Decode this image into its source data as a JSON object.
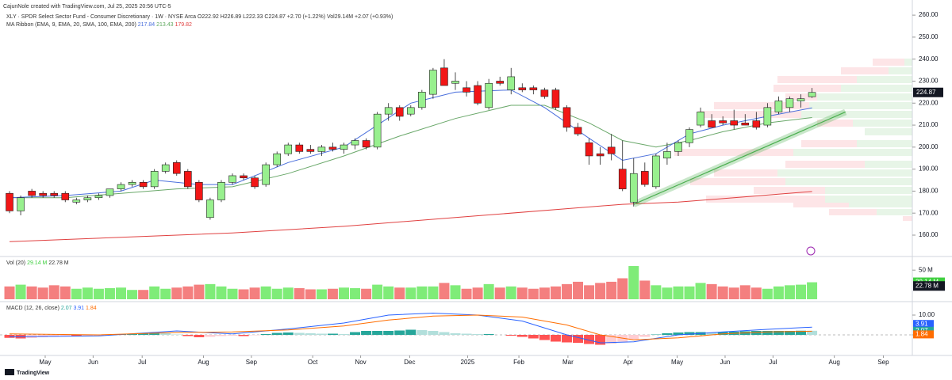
{
  "header": {
    "credit": "CajunNole created with TradingView.com, Jul 25, 2025 20:56 UTC-5",
    "footer": "TradingView"
  },
  "chart_data": [
    {
      "type": "candlestick",
      "legend": [
        "XLY · SPDR Select Sector Fund - Consumer Discretionary · 1W · NYSE Arca  O222.92 H226.89 L222.33 C224.87 +2.70 (+1.22%) Vol29.14M +2.07 (+0.93%)",
        "MA Ribbon (EMA, 9, EMA, 20, SMA, 100, EMA, 200)"
      ],
      "legend_values": [
        217.84,
        213.43,
        179.82
      ],
      "legend_colors": [
        "#4a6fdc",
        "#5fa85f",
        "#e04040"
      ],
      "up_color": "#98f08e",
      "down_color": "#f21616",
      "ohlc": [
        [
          179,
          180,
          170,
          171
        ],
        [
          171,
          178,
          169,
          177
        ],
        [
          180,
          181,
          177,
          178
        ],
        [
          179,
          180,
          177,
          178
        ],
        [
          179,
          180,
          177,
          178
        ],
        [
          179,
          180,
          175,
          176
        ],
        [
          175,
          177,
          174,
          176
        ],
        [
          176,
          178,
          175,
          177
        ],
        [
          177,
          179,
          176,
          178
        ],
        [
          178,
          181,
          177,
          181
        ],
        [
          181,
          184,
          180,
          183
        ],
        [
          183,
          185,
          182,
          184
        ],
        [
          184,
          185,
          181,
          182
        ],
        [
          182,
          190,
          181,
          189
        ],
        [
          189,
          193,
          188,
          192
        ],
        [
          193,
          194,
          187,
          188
        ],
        [
          189,
          190,
          181,
          182
        ],
        [
          184,
          185,
          175,
          176
        ],
        [
          168,
          177,
          167,
          176
        ],
        [
          176,
          185,
          175,
          184
        ],
        [
          184,
          188,
          183,
          187
        ],
        [
          187,
          188,
          185,
          186
        ],
        [
          186,
          187,
          181,
          182
        ],
        [
          183,
          193,
          182,
          192
        ],
        [
          192,
          198,
          191,
          197
        ],
        [
          197,
          202,
          196,
          201
        ],
        [
          201,
          202,
          197,
          198
        ],
        [
          199,
          201,
          197,
          198
        ],
        [
          198,
          201,
          196,
          200
        ],
        [
          200,
          202,
          198,
          199
        ],
        [
          199,
          202,
          197,
          201
        ],
        [
          201,
          204,
          199,
          203
        ],
        [
          203,
          204,
          199,
          200
        ],
        [
          200,
          216,
          199,
          215
        ],
        [
          215,
          220,
          212,
          218
        ],
        [
          218,
          219,
          212,
          214
        ],
        [
          215,
          219,
          214,
          218
        ],
        [
          218,
          226,
          217,
          225
        ],
        [
          224,
          236,
          222,
          235
        ],
        [
          236,
          240,
          228,
          228
        ],
        [
          229,
          234,
          226,
          230
        ],
        [
          227,
          230,
          223,
          225
        ],
        [
          228,
          230,
          219,
          220
        ],
        [
          218,
          231,
          217,
          229
        ],
        [
          230,
          232,
          228,
          229
        ],
        [
          226,
          236,
          224,
          232
        ],
        [
          227,
          229,
          225,
          226
        ],
        [
          227,
          228,
          224,
          226
        ],
        [
          226,
          227,
          222,
          223
        ],
        [
          226,
          227,
          217,
          218
        ],
        [
          218,
          219,
          207,
          209
        ],
        [
          209,
          211,
          205,
          206
        ],
        [
          202,
          204,
          192,
          196
        ],
        [
          197,
          200,
          192,
          196
        ],
        [
          200,
          206,
          194,
          197
        ],
        [
          190,
          203,
          180,
          181
        ],
        [
          175,
          195,
          173,
          188
        ],
        [
          189,
          193,
          182,
          183
        ],
        [
          182,
          197,
          181,
          196
        ],
        [
          195,
          202,
          192,
          198
        ],
        [
          198,
          203,
          196,
          202
        ],
        [
          202,
          209,
          200,
          208
        ],
        [
          210,
          218,
          209,
          216
        ],
        [
          212,
          215,
          209,
          209
        ],
        [
          212,
          214,
          210,
          211
        ],
        [
          212,
          217,
          208,
          210
        ],
        [
          211,
          215,
          210,
          210
        ],
        [
          212,
          216,
          208,
          209
        ],
        [
          210,
          220,
          209,
          218
        ],
        [
          216,
          223,
          215,
          221
        ],
        [
          218,
          223,
          216,
          222
        ],
        [
          221,
          224,
          218,
          222
        ],
        [
          222.92,
          226.89,
          222.33,
          224.87
        ]
      ],
      "lines": [
        {
          "color": "#e04040",
          "x": [
            0,
            10,
            20,
            30,
            40,
            50,
            55,
            60,
            65,
            72
          ],
          "values": [
            157,
            159,
            161,
            164,
            168,
            172,
            174,
            175,
            177,
            179.82
          ]
        },
        {
          "color": "#6aa86a",
          "x": [
            0,
            5,
            10,
            15,
            20,
            25,
            30,
            35,
            40,
            45,
            48,
            52,
            55,
            58,
            61,
            64,
            68,
            72
          ],
          "values": [
            177,
            177,
            179,
            181,
            182,
            188,
            196,
            205,
            213,
            219,
            219,
            211,
            203,
            200,
            203,
            207,
            211,
            213.43
          ]
        },
        {
          "color": "#4a6fdc",
          "x": [
            0,
            5,
            10,
            13,
            17,
            20,
            25,
            30,
            33,
            36,
            40,
            45,
            48,
            52,
            55,
            58,
            61,
            64,
            68,
            72
          ],
          "values": [
            177,
            178,
            180,
            185,
            183,
            183,
            193,
            200,
            210,
            220,
            225,
            226,
            218,
            204,
            194,
            197,
            206,
            210,
            214,
            217.84
          ]
        }
      ],
      "trendline": {
        "color": "#4caf50",
        "x": [
          56,
          75
        ],
        "values": [
          174,
          216
        ]
      },
      "xlim": [
        -0.5,
        81
      ],
      "xticks": [
        {
          "value": 3.2,
          "label": "May"
        },
        {
          "value": 7.5,
          "label": "Jun"
        },
        {
          "value": 11.9,
          "label": "Jul"
        },
        {
          "value": 17.4,
          "label": "Aug"
        },
        {
          "value": 21.7,
          "label": "Sep"
        },
        {
          "value": 27.2,
          "label": "Oct"
        },
        {
          "value": 31.5,
          "label": "Nov"
        },
        {
          "value": 35.9,
          "label": "Dec"
        },
        {
          "value": 41.1,
          "label": "2025"
        },
        {
          "value": 45.7,
          "label": "Feb"
        },
        {
          "value": 50.1,
          "label": "Mar"
        },
        {
          "value": 55.5,
          "label": "Apr"
        },
        {
          "value": 59.9,
          "label": "May"
        },
        {
          "value": 64.2,
          "label": "Jun"
        },
        {
          "value": 68.5,
          "label": "Jul"
        },
        {
          "value": 74,
          "label": "Aug"
        },
        {
          "value": 78.4,
          "label": "Sep"
        }
      ],
      "ylim": [
        151,
        264
      ],
      "yticks": [
        {
          "value": 160,
          "label": "160.00"
        },
        {
          "value": 170,
          "label": "170.00"
        },
        {
          "value": 180,
          "label": "180.00"
        },
        {
          "value": 190,
          "label": "190.00"
        },
        {
          "value": 200,
          "label": "200.00"
        },
        {
          "value": 210,
          "label": "210.00"
        },
        {
          "value": 220,
          "label": "220.00"
        },
        {
          "value": 230,
          "label": "230.00"
        },
        {
          "value": 240,
          "label": "240.00"
        },
        {
          "value": 250,
          "label": "250.00"
        },
        {
          "value": 260,
          "label": "260.00"
        }
      ]
    },
    {
      "type": "bar",
      "legend": "Vol (20)",
      "up_color": "#7fec78",
      "down_color": "#f47f7f",
      "values": [
        22,
        25,
        22,
        20,
        24,
        22,
        18,
        20,
        18,
        19,
        20,
        16,
        16,
        22,
        18,
        20,
        22,
        25,
        26,
        22,
        18,
        17,
        20,
        22,
        18,
        20,
        19,
        17,
        17,
        18,
        20,
        19,
        18,
        25,
        22,
        20,
        20,
        22,
        22,
        28,
        24,
        18,
        20,
        26,
        20,
        22,
        20,
        18,
        20,
        22,
        26,
        30,
        24,
        28,
        30,
        36,
        57,
        32,
        24,
        20,
        22,
        22,
        28,
        26,
        22,
        20,
        24,
        20,
        18,
        22,
        24,
        25,
        29.14
      ],
      "badges": [
        {
          "value": 29.14,
          "label": "29.14 M",
          "color": "#3fcf3f"
        },
        {
          "value": 22.78,
          "label": "22.78 M",
          "color": "#131722"
        }
      ],
      "ylim": [
        0,
        72
      ],
      "yticks": [
        {
          "value": 50,
          "label": "50 M"
        }
      ]
    },
    {
      "type": "macd",
      "legend": "MACD (12, 26, close)",
      "histogram": [
        -1.5,
        -1.8,
        -1.6,
        -1.2,
        -1.0,
        -0.8,
        -0.8,
        -0.6,
        -0.4,
        -0.2,
        0.2,
        0.4,
        0.8,
        1.0,
        0.8,
        0.2,
        -0.6,
        -1.2,
        -1.0,
        -0.6,
        -0.4,
        -0.6,
        -0.2,
        0.4,
        1.0,
        1.2,
        1.0,
        0.8,
        0.6,
        0.6,
        0.4,
        1.4,
        2.0,
        2.0,
        2.0,
        2.2,
        2.6,
        2.4,
        2.0,
        1.4,
        0.8,
        0.6,
        0.4,
        0.4,
        0.0,
        -0.4,
        -1.0,
        -1.8,
        -2.6,
        -3.4,
        -3.8,
        -4.0,
        -4.6,
        -5.0,
        -4.4,
        -3.4,
        -2.2,
        -1.0,
        0.2,
        0.8,
        1.2,
        1.4,
        1.4,
        1.2,
        1.4,
        1.6,
        1.8,
        2.0,
        2.0,
        2.0,
        2.0,
        2.1,
        2.07
      ],
      "lines": [
        {
          "color": "#2962ff",
          "x": [
            0,
            8,
            15,
            20,
            25,
            30,
            34,
            38,
            42,
            46,
            50,
            53,
            56,
            60,
            64,
            68,
            72
          ],
          "values": [
            -1,
            -0.5,
            2,
            0.5,
            3,
            6,
            10,
            11,
            10,
            7,
            0,
            -4,
            -3.5,
            0,
            1.5,
            2.8,
            3.91
          ]
        },
        {
          "color": "#ff6d00",
          "x": [
            0,
            8,
            15,
            20,
            25,
            30,
            34,
            38,
            42,
            46,
            50,
            53,
            56,
            60,
            64,
            68,
            72
          ],
          "values": [
            0.5,
            0,
            1.2,
            1.5,
            2.5,
            4.5,
            7.5,
            9.5,
            10,
            9,
            5,
            0,
            -2.5,
            -1.5,
            0.5,
            1.5,
            1.84
          ]
        }
      ],
      "badges": [
        {
          "value": 3.91,
          "color": "#2962ff"
        },
        {
          "value": 2.07,
          "color": "#26a69a"
        },
        {
          "value": 1.84,
          "color": "#ff6d00"
        }
      ],
      "ylim": [
        -10,
        16
      ],
      "yticks": [
        {
          "value": 10,
          "label": "10.00"
        },
        0
      ]
    }
  ]
}
